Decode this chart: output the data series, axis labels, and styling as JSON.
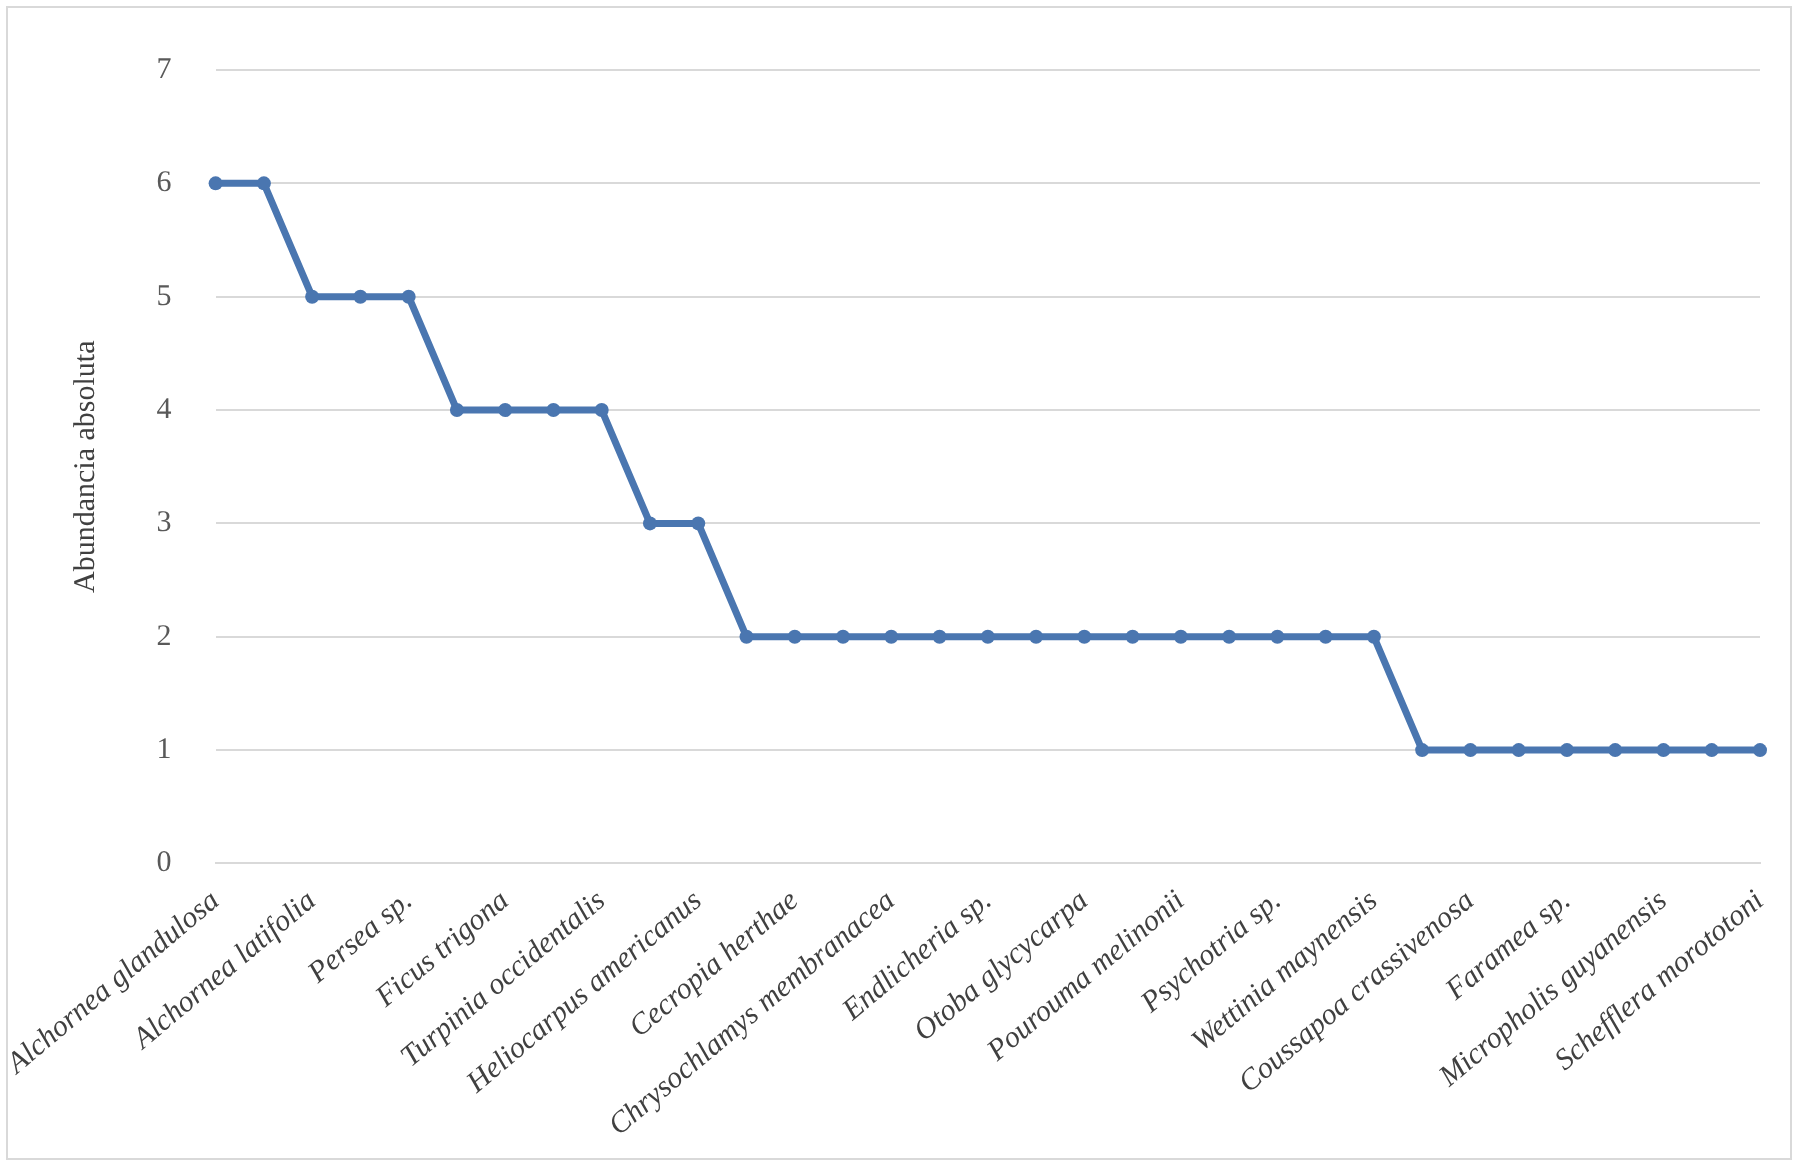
{
  "chart_data": {
    "type": "line",
    "ylabel": "Abundancia absoluta",
    "categories": [
      "Alchornea glandulosa",
      null,
      "Alchornea latifolia",
      null,
      "Persea sp.",
      null,
      "Ficus trigona",
      null,
      "Turpinia occidentalis",
      null,
      "Heliocarpus americanus",
      null,
      "Cecropia herthae",
      null,
      "Chrysochlamys membranacea",
      null,
      "Endlicheria sp.",
      null,
      "Otoba glycycarpa",
      null,
      "Pourouma melinonii",
      null,
      "Psychotria sp.",
      null,
      "Wettinia maynensis",
      null,
      "Coussapoa crassivenosa",
      null,
      "Faramea sp.",
      null,
      "Micropholis guyanensis",
      null,
      "Schefflera morototoni"
    ],
    "series": [
      {
        "color": "#4a76b0",
        "values": [
          6,
          6,
          5,
          5,
          5,
          4,
          4,
          4,
          4,
          3,
          3,
          2,
          2,
          2,
          2,
          2,
          2,
          2,
          2,
          2,
          2,
          2,
          2,
          2,
          2,
          1,
          1,
          1,
          1,
          1,
          1,
          1,
          1
        ]
      }
    ],
    "ylim": [
      0,
      7
    ],
    "yticks": [
      0,
      1,
      2,
      3,
      4,
      5,
      6,
      7
    ],
    "grid": "y",
    "legend": false,
    "marker": "circle",
    "line_style": "solid"
  }
}
